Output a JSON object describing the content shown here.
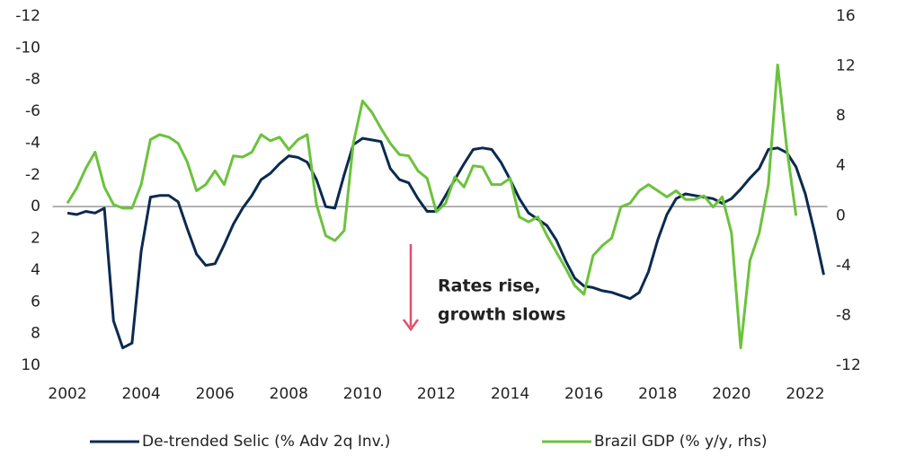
{
  "chart_data": {
    "type": "line",
    "x": [
      2002,
      2002.25,
      2002.5,
      2002.75,
      2003,
      2003.25,
      2003.5,
      2003.75,
      2004,
      2004.25,
      2004.5,
      2004.75,
      2005,
      2005.25,
      2005.5,
      2005.75,
      2006,
      2006.25,
      2006.5,
      2006.75,
      2007,
      2007.25,
      2007.5,
      2007.75,
      2008,
      2008.25,
      2008.5,
      2008.75,
      2009,
      2009.25,
      2009.5,
      2009.75,
      2010,
      2010.25,
      2010.5,
      2010.75,
      2011,
      2011.25,
      2011.5,
      2011.75,
      2012,
      2012.25,
      2012.5,
      2012.75,
      2013,
      2013.25,
      2013.5,
      2013.75,
      2014,
      2014.25,
      2014.5,
      2014.75,
      2015,
      2015.25,
      2015.5,
      2015.75,
      2016,
      2016.25,
      2016.5,
      2016.75,
      2017,
      2017.25,
      2017.5,
      2017.75,
      2018,
      2018.25,
      2018.5,
      2018.75,
      2019,
      2019.25,
      2019.5,
      2019.75,
      2020,
      2020.25,
      2020.5,
      2020.75,
      2021,
      2021.25,
      2021.5,
      2021.75,
      2022,
      2022.25,
      2022.5
    ],
    "series": [
      {
        "name": "De-trended Selic (% Adv 2q Inv.)",
        "color": "#0b2a4f",
        "axis": "y",
        "values": [
          0.4,
          0.5,
          0.3,
          0.4,
          0.1,
          7.2,
          8.9,
          8.6,
          2.8,
          -0.6,
          -0.7,
          -0.7,
          -0.3,
          1.4,
          3.0,
          3.7,
          3.6,
          2.4,
          1.1,
          0.1,
          -0.7,
          -1.7,
          -2.1,
          -2.7,
          -3.2,
          -3.1,
          -2.8,
          -1.7,
          0,
          0.1,
          -2.0,
          -3.9,
          -4.3,
          -4.2,
          -4.1,
          -2.4,
          -1.7,
          -1.5,
          -0.5,
          0.3,
          0.3,
          -0.7,
          -1.7,
          -2.7,
          -3.6,
          -3.7,
          -3.6,
          -2.8,
          -1.7,
          -0.5,
          0.4,
          0.8,
          1.2,
          2.1,
          3.4,
          4.5,
          5.0,
          5.1,
          5.3,
          5.4,
          5.6,
          5.8,
          5.4,
          4.1,
          2.1,
          0.5,
          -0.5,
          -0.8,
          -0.7,
          -0.6,
          -0.5,
          -0.2,
          -0.5,
          -1.1,
          -1.8,
          -2.4,
          -3.6,
          -3.7,
          -3.4,
          -2.5,
          -0.8,
          1.6,
          4.3
        ]
      },
      {
        "name": "Brazil GDP (% y/y, rhs)",
        "color": "#6cc23c",
        "axis": "y2",
        "values": [
          1.0,
          2.2,
          3.8,
          5.1,
          2.3,
          0.9,
          0.6,
          0.6,
          2.5,
          6.1,
          6.5,
          6.3,
          5.8,
          4.3,
          2.0,
          2.5,
          3.6,
          2.5,
          4.8,
          4.7,
          5.1,
          6.5,
          6.0,
          6.3,
          5.3,
          6.1,
          6.5,
          0.9,
          -1.6,
          -2.0,
          -1.2,
          5.8,
          9.2,
          8.3,
          7.0,
          5.8,
          4.9,
          4.8,
          3.6,
          3.0,
          0.3,
          1.0,
          3.1,
          2.3,
          4.0,
          3.9,
          2.5,
          2.5,
          3.0,
          -0.1,
          -0.5,
          -0.1,
          -1.6,
          -2.9,
          -4.2,
          -5.6,
          -6.3,
          -3.2,
          -2.4,
          -1.8,
          0.7,
          1.0,
          2.0,
          2.5,
          2.0,
          1.5,
          2.0,
          1.3,
          1.3,
          1.6,
          0.7,
          1.5,
          -1.4,
          -10.6,
          -3.6,
          -1.4,
          2.5,
          12.1,
          5.4,
          0.0,
          null,
          null,
          null
        ]
      }
    ],
    "xlim": [
      2001.6,
      2022.6
    ],
    "xticks": [
      2002,
      2004,
      2006,
      2008,
      2010,
      2012,
      2014,
      2016,
      2018,
      2020,
      2022
    ],
    "ylim": [
      10,
      -12
    ],
    "yticks": [
      -12,
      -10,
      -8,
      -6,
      -4,
      -2,
      0,
      2,
      4,
      6,
      8,
      10
    ],
    "y2lim": [
      -12,
      16
    ],
    "y2ticks": [
      16,
      12,
      8,
      4,
      0,
      -4,
      -8,
      -12
    ],
    "annotation": {
      "lines": [
        "Rates rise,",
        "growth slows"
      ],
      "color": "#e0506e"
    },
    "legend": "bottom"
  }
}
